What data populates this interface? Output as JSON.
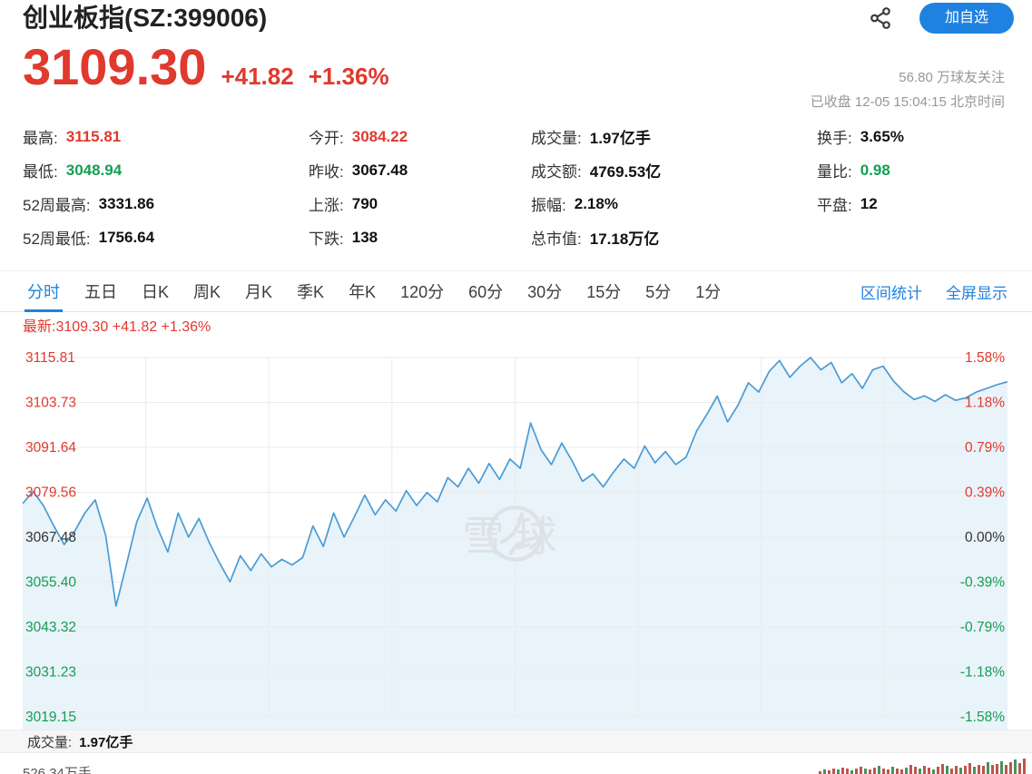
{
  "colors": {
    "up": "#e0392e",
    "down": "#149e53",
    "accent": "#1f82e0",
    "line": "#4a9bd5",
    "fill": "#e9f3fa",
    "grid": "#ebebeb"
  },
  "header": {
    "title": "创业板指(SZ:399006)",
    "follow_button": "加自选",
    "price": "3109.30",
    "change": "+41.82",
    "change_pct": "+1.36%",
    "followers": "56.80 万球友关注",
    "market_status": "已收盘 12-05 15:04:15 北京时间"
  },
  "stats": {
    "columns": [
      {
        "items": [
          {
            "label": "最高:",
            "value": "3115.81",
            "color": "red"
          },
          {
            "label": "最低:",
            "value": "3048.94",
            "color": "green"
          },
          {
            "label": "52周最高:",
            "value": "3331.86",
            "color": "dark"
          },
          {
            "label": "52周最低:",
            "value": "1756.64",
            "color": "dark"
          }
        ]
      },
      {
        "items": [
          {
            "label": "今开:",
            "value": "3084.22",
            "color": "red"
          },
          {
            "label": "昨收:",
            "value": "3067.48",
            "color": "dark"
          },
          {
            "label": "上涨:",
            "value": "790",
            "color": "dark"
          },
          {
            "label": "下跌:",
            "value": "138",
            "color": "dark"
          }
        ]
      },
      {
        "items": [
          {
            "label": "成交量:",
            "value": "1.97亿手",
            "color": "dark"
          },
          {
            "label": "成交额:",
            "value": "4769.53亿",
            "color": "dark"
          },
          {
            "label": "振幅:",
            "value": "2.18%",
            "color": "dark"
          },
          {
            "label": "总市值:",
            "value": "17.18万亿",
            "color": "dark"
          }
        ]
      },
      {
        "items": [
          {
            "label": "换手:",
            "value": "3.65%",
            "color": "dark"
          },
          {
            "label": "量比:",
            "value": "0.98",
            "color": "green"
          },
          {
            "label": "平盘:",
            "value": "12",
            "color": "dark"
          }
        ]
      }
    ]
  },
  "tabs": {
    "items": [
      "分时",
      "五日",
      "日K",
      "周K",
      "月K",
      "季K",
      "年K",
      "120分",
      "60分",
      "30分",
      "15分",
      "5分",
      "1分"
    ],
    "active_index": 0,
    "right_links": [
      "区间统计",
      "全屏显示"
    ]
  },
  "chart_data": {
    "type": "line",
    "latest_label": "最新:3109.30 +41.82 +1.36%",
    "prev_close": 3067.48,
    "open": 3084.22,
    "high": 3115.81,
    "low": 3048.94,
    "last": 3109.3,
    "ylim": [
      3019.15,
      3115.81
    ],
    "y_axis_left": [
      "3115.81",
      "3103.73",
      "3091.64",
      "3079.56",
      "3067.48",
      "3055.40",
      "3043.32",
      "3031.23",
      "3019.15"
    ],
    "y_axis_right": [
      "1.58%",
      "1.18%",
      "0.79%",
      "0.39%",
      "0.00%",
      "-0.39%",
      "-0.79%",
      "-1.18%",
      "-1.58%"
    ],
    "x_segments": 8,
    "series": [
      {
        "name": "分时价格",
        "values": [
          3076.5,
          3079.8,
          3076.0,
          3070.5,
          3065.5,
          3069.0,
          3074.0,
          3077.5,
          3068.0,
          3048.94,
          3060.0,
          3071.5,
          3078.0,
          3070.0,
          3063.5,
          3074.0,
          3067.5,
          3072.5,
          3066.0,
          3060.5,
          3055.5,
          3062.5,
          3058.5,
          3063.0,
          3059.5,
          3061.5,
          3060.0,
          3062.0,
          3070.5,
          3065.0,
          3074.0,
          3067.5,
          3073.0,
          3078.8,
          3073.5,
          3077.5,
          3074.5,
          3080.0,
          3076.0,
          3079.5,
          3077.0,
          3083.5,
          3081.0,
          3086.0,
          3082.0,
          3087.3,
          3083.0,
          3088.5,
          3086.0,
          3098.2,
          3091.0,
          3087.0,
          3092.8,
          3088.0,
          3082.5,
          3084.5,
          3081.0,
          3085.0,
          3088.5,
          3086.0,
          3092.0,
          3087.5,
          3090.5,
          3087.0,
          3089.0,
          3096.0,
          3100.5,
          3105.4,
          3098.5,
          3103.0,
          3109.0,
          3106.5,
          3112.0,
          3115.0,
          3110.5,
          3113.5,
          3115.81,
          3112.5,
          3114.5,
          3109.0,
          3111.5,
          3107.5,
          3112.5,
          3113.5,
          3109.5,
          3106.6,
          3104.5,
          3105.5,
          3104.0,
          3105.8,
          3104.3,
          3105.0,
          3106.5,
          3107.5,
          3108.5,
          3109.3
        ]
      }
    ],
    "watermark": "雪球",
    "volume_label": "成交量:",
    "volume_value": "1.97亿手",
    "volume_axis_label": "526.34万手",
    "volume_bars": [
      3,
      5,
      4,
      6,
      5,
      7,
      6,
      4,
      6,
      8,
      6,
      5,
      7,
      9,
      6,
      5,
      8,
      6,
      5,
      7,
      10,
      8,
      6,
      9,
      7,
      5,
      8,
      11,
      9,
      6,
      9,
      7,
      9,
      12,
      8,
      10,
      9,
      13,
      10,
      11,
      14,
      10,
      13,
      16,
      12,
      17
    ]
  }
}
